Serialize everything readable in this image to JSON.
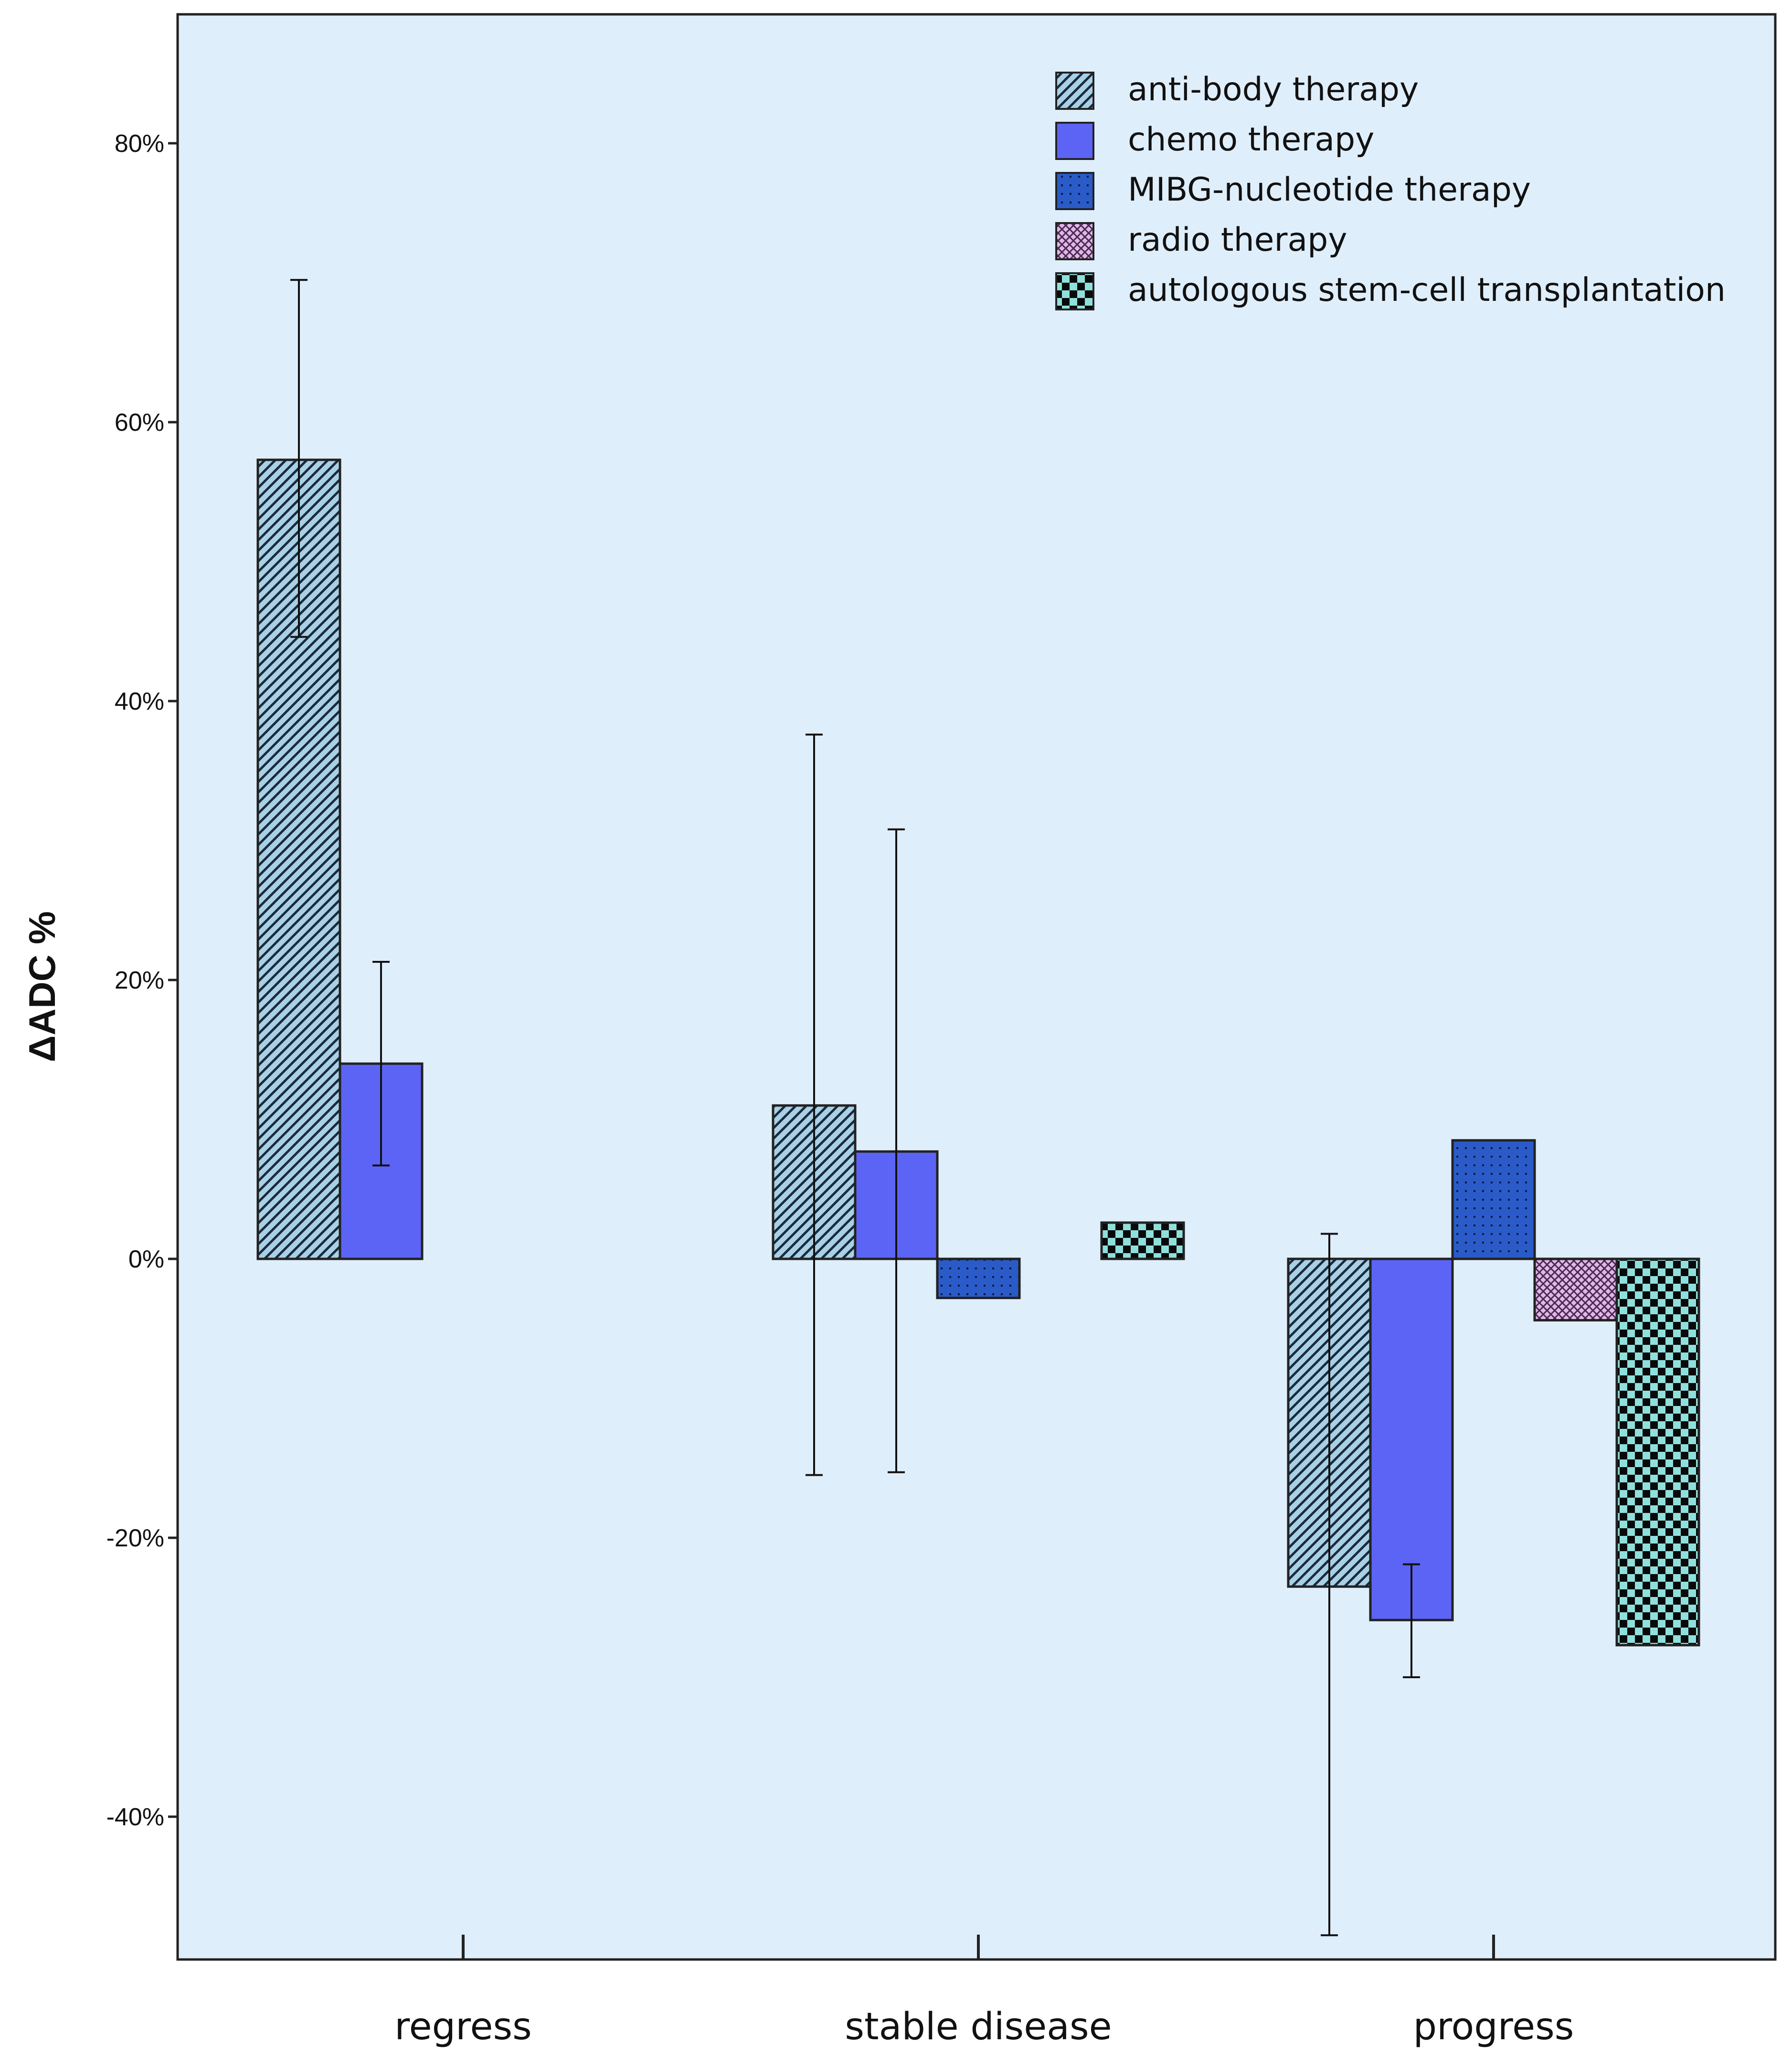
{
  "chart_data": {
    "type": "bar",
    "title": "",
    "xlabel": "",
    "ylabel": "ΔADC %",
    "categories": [
      "regress",
      "stable disease",
      "progress"
    ],
    "ylim": [
      -49,
      89
    ],
    "yticks": [
      -40,
      -20,
      0,
      20,
      40,
      60,
      80
    ],
    "ytick_labels": [
      "-40%",
      "-20%",
      "0%",
      "20%",
      "40%",
      "60%",
      "80%"
    ],
    "grid": false,
    "legend_position": "top-right",
    "series": [
      {
        "name": "anti-body therapy",
        "pattern": "diagonal-hatch",
        "color": "#a8d0e6",
        "values": [
          57.3,
          11.0,
          -23.5
        ],
        "error": [
          [
            44.6,
            70.2
          ],
          [
            -15.5,
            37.6
          ],
          [
            -48.5,
            1.8
          ]
        ]
      },
      {
        "name": "chemo therapy",
        "pattern": "solid",
        "color": "#5c64f5",
        "values": [
          14.0,
          7.7,
          -25.9
        ],
        "error": [
          [
            6.7,
            21.3
          ],
          [
            -15.3,
            30.8
          ],
          [
            -30.0,
            -21.9
          ]
        ]
      },
      {
        "name": "MIBG-nucleotide therapy",
        "pattern": "dots",
        "color": "#2a5bc8",
        "values": [
          null,
          -2.8,
          8.5
        ],
        "error": [
          null,
          null,
          null
        ]
      },
      {
        "name": "radio therapy",
        "pattern": "crosshatch",
        "color": "#e0b7e8",
        "values": [
          null,
          null,
          -4.4
        ],
        "error": [
          null,
          null,
          null
        ]
      },
      {
        "name": "autologous stem-cell transplantation",
        "pattern": "checker",
        "color": "#8fe0dc",
        "values": [
          null,
          2.6,
          -27.7
        ],
        "error": [
          null,
          null,
          null
        ]
      }
    ]
  },
  "colors": {
    "plot_background": "#dfeefb",
    "axis": "#222222"
  }
}
